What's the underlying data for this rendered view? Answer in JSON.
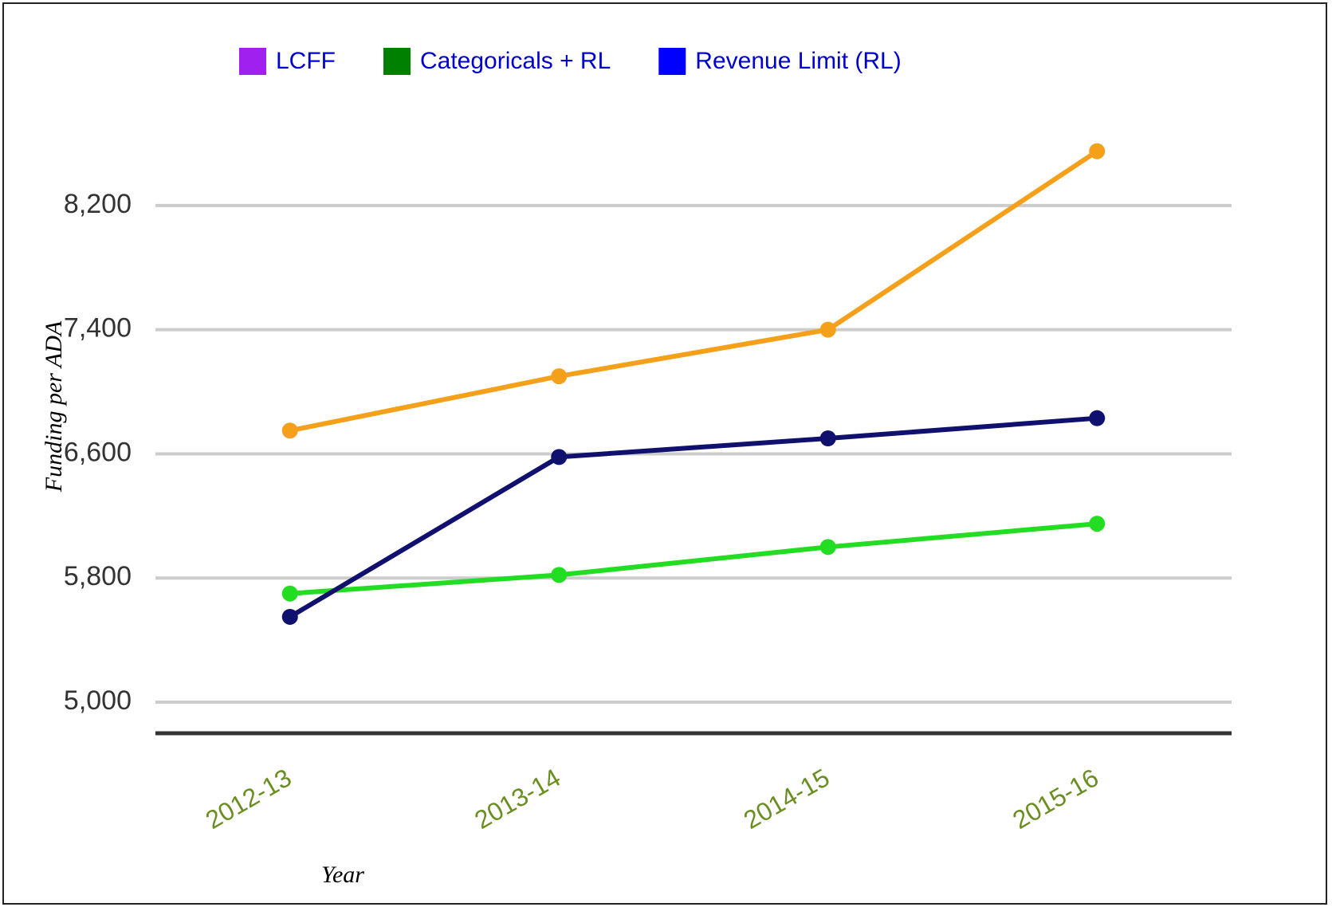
{
  "chart_data": {
    "type": "line",
    "categories": [
      "2012-13",
      "2013-14",
      "2014-15",
      "2015-16"
    ],
    "series": [
      {
        "name": "LCFF",
        "color": "#f5a01a",
        "values": [
          6750,
          7100,
          7400,
          8550
        ]
      },
      {
        "name": "Categoricals + RL",
        "color": "#22dd22",
        "values": [
          5700,
          5820,
          6000,
          6150
        ]
      },
      {
        "name": "Revenue Limit (RL)",
        "color": "#10106e",
        "values": [
          5550,
          6580,
          6700,
          6830
        ]
      }
    ],
    "legend_colors": [
      "#a020f0",
      "#008000",
      "#0000ff"
    ],
    "xlabel": "Year",
    "ylabel": "Funding per ADA",
    "ylim": [
      4800,
      8600
    ],
    "yticks": [
      {
        "value": 5000,
        "label": "5,000"
      },
      {
        "value": 5800,
        "label": "5,800"
      },
      {
        "value": 6600,
        "label": "6,600"
      },
      {
        "value": 7400,
        "label": "7,400"
      },
      {
        "value": 8200,
        "label": "8,200"
      }
    ],
    "grid": true,
    "legend": "top"
  }
}
